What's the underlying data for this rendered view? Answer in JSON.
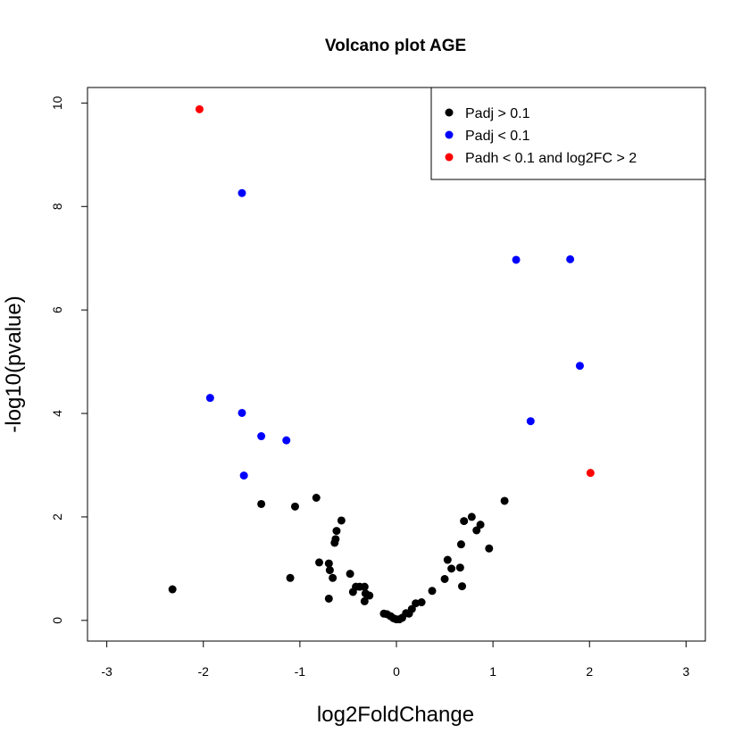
{
  "chart_data": {
    "type": "scatter",
    "title": "Volcano plot AGE",
    "xlabel": "log2FoldChange",
    "ylabel": "-log10(pvalue)",
    "xlim": [
      -3.2,
      3.2
    ],
    "ylim": [
      -0.4,
      10.3
    ],
    "x_ticks": [
      -3,
      -2,
      -1,
      0,
      1,
      2,
      3
    ],
    "y_ticks": [
      0,
      2,
      4,
      6,
      8,
      10
    ],
    "grid": false,
    "legend_position": "top-right",
    "series": [
      {
        "name": "Padj > 0.1",
        "color": "#000000",
        "points": [
          [
            -2.32,
            0.6
          ],
          [
            -1.4,
            2.25
          ],
          [
            -1.05,
            2.2
          ],
          [
            -1.1,
            0.82
          ],
          [
            -0.83,
            2.37
          ],
          [
            -0.8,
            1.12
          ],
          [
            -0.7,
            1.1
          ],
          [
            -0.69,
            0.97
          ],
          [
            -0.66,
            0.82
          ],
          [
            -0.7,
            0.42
          ],
          [
            -0.64,
            1.5
          ],
          [
            -0.63,
            1.57
          ],
          [
            -0.62,
            1.73
          ],
          [
            -0.57,
            1.93
          ],
          [
            -0.48,
            0.9
          ],
          [
            -0.45,
            0.55
          ],
          [
            -0.42,
            0.65
          ],
          [
            -0.38,
            0.65
          ],
          [
            -0.33,
            0.65
          ],
          [
            -0.32,
            0.52
          ],
          [
            -0.33,
            0.37
          ],
          [
            -0.28,
            0.48
          ],
          [
            -0.13,
            0.13
          ],
          [
            -0.1,
            0.12
          ],
          [
            -0.06,
            0.08
          ],
          [
            -0.03,
            0.04
          ],
          [
            0.0,
            0.02
          ],
          [
            0.03,
            0.02
          ],
          [
            0.06,
            0.05
          ],
          [
            0.1,
            0.14
          ],
          [
            0.13,
            0.13
          ],
          [
            0.16,
            0.22
          ],
          [
            0.2,
            0.33
          ],
          [
            0.26,
            0.35
          ],
          [
            0.37,
            0.57
          ],
          [
            0.5,
            0.8
          ],
          [
            0.53,
            1.17
          ],
          [
            0.57,
            1.0
          ],
          [
            0.66,
            1.02
          ],
          [
            0.67,
            1.47
          ],
          [
            0.68,
            0.66
          ],
          [
            0.7,
            1.92
          ],
          [
            0.78,
            2.0
          ],
          [
            0.83,
            1.74
          ],
          [
            0.87,
            1.85
          ],
          [
            0.96,
            1.39
          ],
          [
            1.12,
            2.31
          ]
        ]
      },
      {
        "name": "Padj < 0.1",
        "color": "#0000ff",
        "points": [
          [
            -1.6,
            8.26
          ],
          [
            -1.93,
            4.3
          ],
          [
            -1.6,
            4.01
          ],
          [
            -1.4,
            3.56
          ],
          [
            -1.14,
            3.48
          ],
          [
            -1.58,
            2.8
          ],
          [
            1.24,
            6.97
          ],
          [
            1.8,
            6.98
          ],
          [
            1.9,
            4.92
          ],
          [
            1.39,
            3.85
          ]
        ]
      },
      {
        "name": "Padh < 0.1 and log2FC > 2",
        "color": "#ff0000",
        "points": [
          [
            -2.04,
            9.88
          ],
          [
            2.01,
            2.85
          ]
        ]
      }
    ]
  }
}
